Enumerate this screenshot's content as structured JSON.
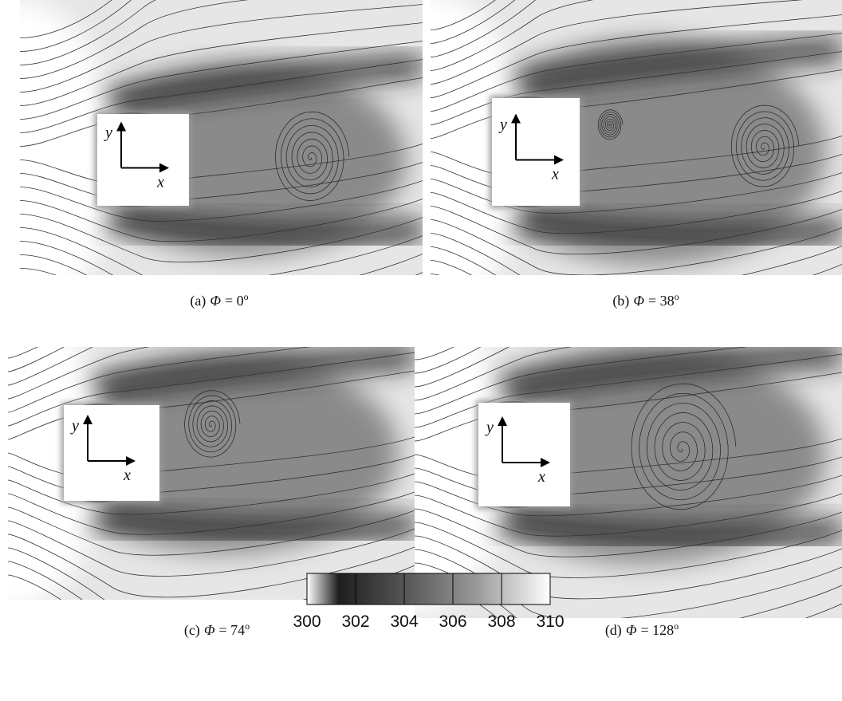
{
  "panels": [
    {
      "label": "(a)",
      "symbol": "Φ",
      "rest": "= 0",
      "unit": "o",
      "axis_x": "x",
      "axis_y": "y"
    },
    {
      "label": "(b)",
      "symbol": "Φ",
      "rest": "= 38",
      "unit": "o",
      "axis_x": "x",
      "axis_y": "y"
    },
    {
      "label": "(c)",
      "symbol": "Φ",
      "rest": "= 74",
      "unit": "o",
      "axis_x": "x",
      "axis_y": "y"
    },
    {
      "label": "(d)",
      "symbol": "Φ",
      "rest": "= 128",
      "unit": "o",
      "axis_x": "x",
      "axis_y": "y"
    }
  ],
  "colorbar": {
    "lim": [
      300,
      310
    ],
    "ticks": [
      300,
      302,
      304,
      306,
      308,
      310
    ]
  }
}
